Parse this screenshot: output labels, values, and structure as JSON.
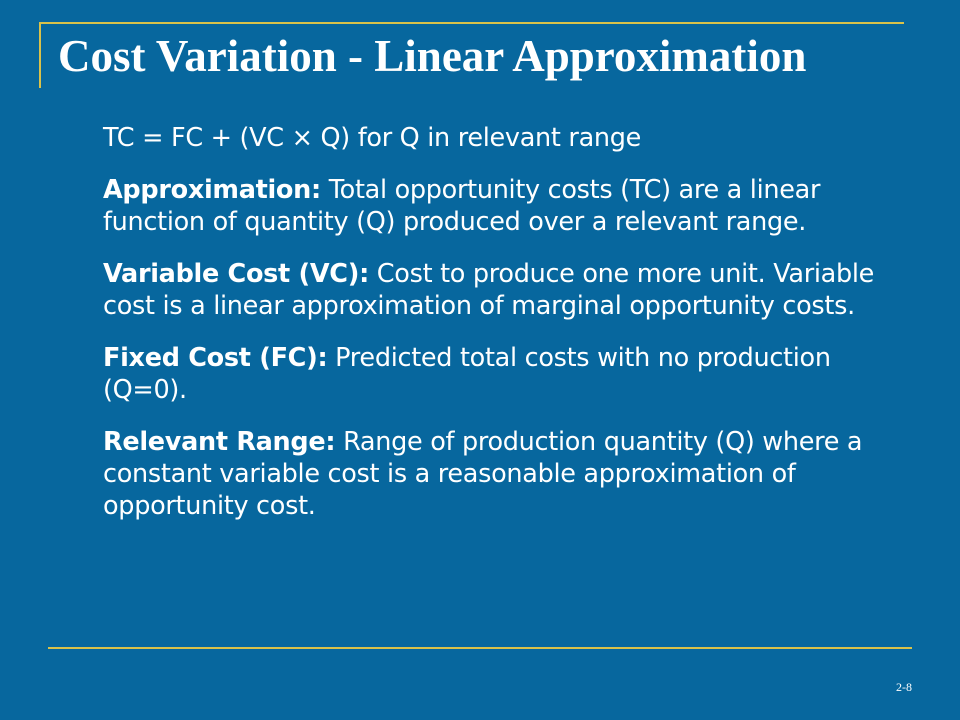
{
  "title": "Cost Variation - Linear Approximation",
  "formula": "TC = FC + (VC × Q) for Q in relevant range",
  "items": [
    {
      "term": "Approximation:",
      "text": "Total opportunity costs (TC) are a linear function of quantity (Q) produced over a relevant range."
    },
    {
      "term": "Variable Cost (VC):",
      "text": "Cost to produce one more unit. Variable cost is a linear approximation of marginal opportunity costs."
    },
    {
      "term": "Fixed Cost (FC):",
      "text": "Predicted total costs with no production (Q=0)."
    },
    {
      "term": "Relevant Range:",
      "text": "Range of production quantity (Q) where a constant variable cost is a reasonable approximation of opportunity cost."
    }
  ],
  "page_number": "2-8"
}
